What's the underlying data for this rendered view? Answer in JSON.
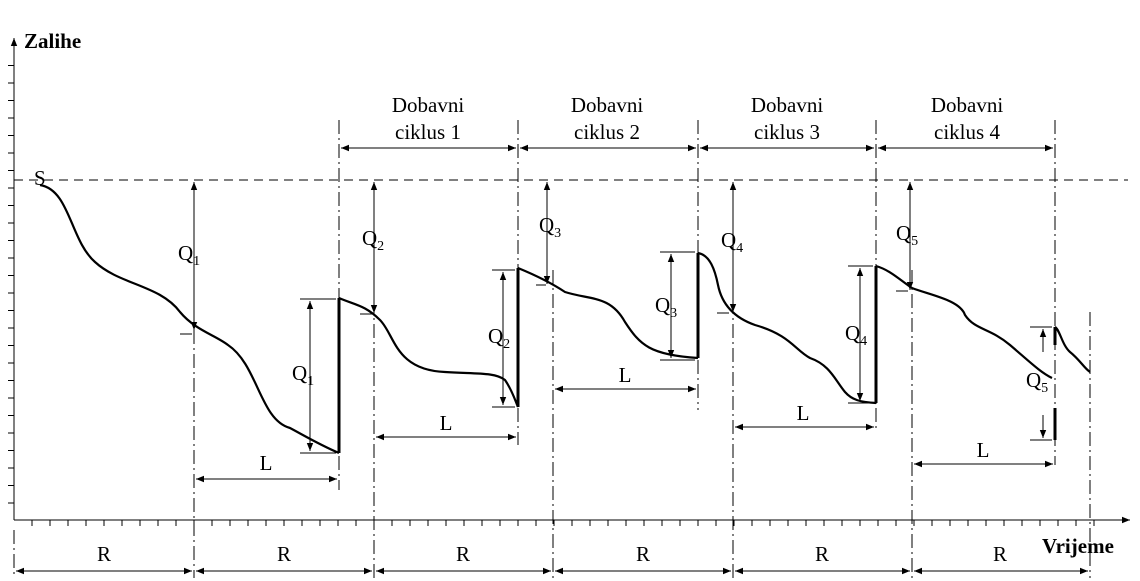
{
  "axes": {
    "y_label": "Zalihe",
    "x_label": "Vrijeme"
  },
  "levels": {
    "s_label": "S"
  },
  "cycles": [
    {
      "line1": "Dobavni",
      "line2": "ciklus 1"
    },
    {
      "line1": "Dobavni",
      "line2": "ciklus 2"
    },
    {
      "line1": "Dobavni",
      "line2": "ciklus 3"
    },
    {
      "line1": "Dobavni",
      "line2": "ciklus 4"
    }
  ],
  "quantities": [
    {
      "base": "Q",
      "sub": "1"
    },
    {
      "base": "Q",
      "sub": "2"
    },
    {
      "base": "Q",
      "sub": "3"
    },
    {
      "base": "Q",
      "sub": "4"
    },
    {
      "base": "Q",
      "sub": "5"
    }
  ],
  "lead_time_label": "L",
  "review_period_label": "R"
}
